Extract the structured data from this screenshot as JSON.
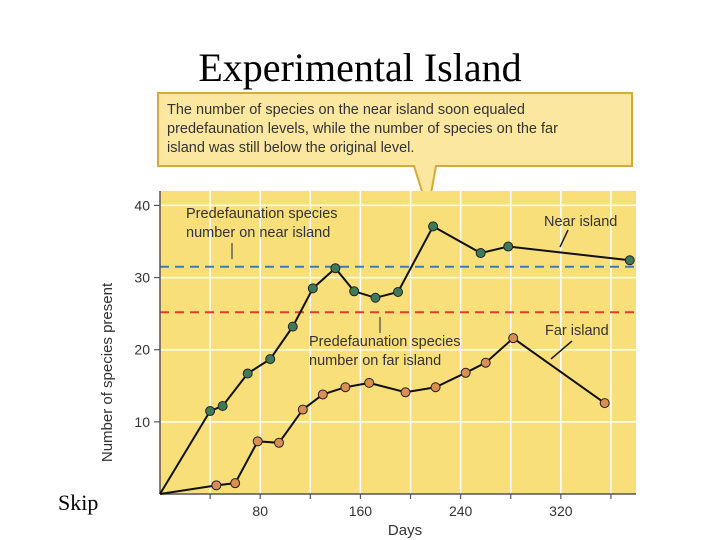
{
  "slide": {
    "title": "Experimental Island",
    "skip_label": "Skip"
  },
  "callout": {
    "lines": [
      "The number of species on the near island soon equaled",
      "predefaunation levels, while the number of species on the far",
      "island was still below the  original level."
    ]
  },
  "colors": {
    "plot_background": "#f9df7a",
    "callout_background": "#fbe7a0",
    "callout_border": "#d4aa3a",
    "near_marker": "#3e7a5a",
    "far_marker": "#d98e52",
    "line": "#111111",
    "near_reference": "#3b7bb8",
    "far_reference": "#e23b2c",
    "grid": "#ffffff",
    "text": "#333333"
  },
  "chart_data": {
    "type": "line",
    "xlabel": "Days",
    "ylabel": "Number of species present",
    "xlim": [
      0,
      380
    ],
    "ylim": [
      0,
      42
    ],
    "x_ticks": [
      80,
      160,
      240,
      320
    ],
    "y_ticks": [
      10,
      20,
      30,
      40
    ],
    "grid": true,
    "series": [
      {
        "name": "Near island",
        "points": [
          [
            0,
            0
          ],
          [
            40,
            11.5
          ],
          [
            50,
            12.2
          ],
          [
            70,
            16.7
          ],
          [
            88,
            18.7
          ],
          [
            106,
            23.2
          ],
          [
            122,
            28.5
          ],
          [
            140,
            31.3
          ],
          [
            155,
            28.1
          ],
          [
            172,
            27.2
          ],
          [
            190,
            28.0
          ],
          [
            218,
            37.1
          ],
          [
            256,
            33.4
          ],
          [
            278,
            34.3
          ],
          [
            375,
            32.4
          ]
        ],
        "marker_from_index": 1
      },
      {
        "name": "Far island",
        "points": [
          [
            0,
            0
          ],
          [
            45,
            1.2
          ],
          [
            60,
            1.5
          ],
          [
            78,
            7.3
          ],
          [
            95,
            7.1
          ],
          [
            114,
            11.7
          ],
          [
            130,
            13.8
          ],
          [
            148,
            14.8
          ],
          [
            167,
            15.4
          ],
          [
            196,
            14.1
          ],
          [
            220,
            14.8
          ],
          [
            244,
            16.8
          ],
          [
            260,
            18.2
          ],
          [
            282,
            21.6
          ],
          [
            355,
            12.6
          ]
        ],
        "marker_from_index": 1
      }
    ],
    "reference_lines": [
      {
        "y": 31.5,
        "series": "Near island",
        "label": [
          "Predefaunation species",
          "number on near island"
        ]
      },
      {
        "y": 25.2,
        "series": "Far island",
        "label": [
          "Predefaunation species",
          "number on far island"
        ]
      }
    ]
  }
}
